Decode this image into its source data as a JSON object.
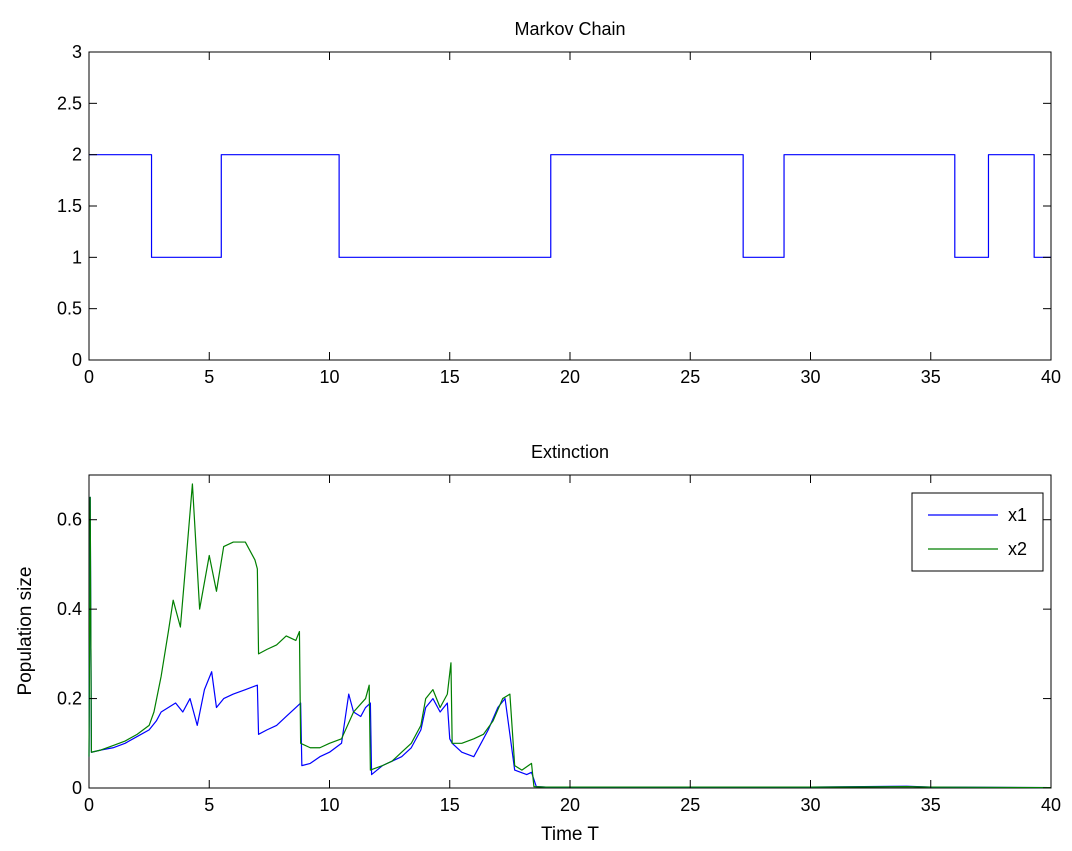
{
  "chart_data": [
    {
      "type": "line",
      "title": "Markov Chain",
      "xlabel": "",
      "ylabel": "",
      "xlim": [
        0,
        40
      ],
      "ylim": [
        0,
        3
      ],
      "xticks": [
        0,
        5,
        10,
        15,
        20,
        25,
        30,
        35,
        40
      ],
      "yticks": [
        0,
        0.5,
        1,
        1.5,
        2,
        2.5,
        3
      ],
      "grid": false,
      "colors": {
        "chain": "#0000ff"
      },
      "series": [
        {
          "step": true,
          "color": "#0000ff",
          "x": [
            0,
            2.6,
            5.5,
            10.4,
            19.2,
            27.2,
            28.9,
            36,
            37.4,
            39.3,
            40
          ],
          "y": [
            2,
            1,
            2,
            1,
            2,
            1,
            2,
            1,
            2,
            1,
            1
          ]
        }
      ]
    },
    {
      "type": "line",
      "title": "Extinction",
      "xlabel": "Time T",
      "ylabel": "Population size",
      "xlim": [
        0,
        40
      ],
      "ylim": [
        0,
        0.7
      ],
      "xticks": [
        0,
        5,
        10,
        15,
        20,
        25,
        30,
        35,
        40
      ],
      "yticks": [
        0,
        0.2,
        0.4,
        0.6
      ],
      "grid": false,
      "legend": "top-right",
      "series": [
        {
          "name": "x1",
          "color": "#0000ff",
          "x": [
            0,
            0.05,
            0.1,
            0.5,
            1,
            1.5,
            2,
            2.5,
            2.8,
            3,
            3.3,
            3.6,
            3.9,
            4.2,
            4.5,
            4.8,
            5.1,
            5.3,
            5.6,
            6,
            6.5,
            7,
            7.05,
            7.4,
            7.8,
            8.2,
            8.6,
            8.8,
            8.85,
            9.2,
            9.6,
            10,
            10.5,
            10.8,
            11,
            11.3,
            11.5,
            11.7,
            11.75,
            12.2,
            12.6,
            13,
            13.4,
            13.8,
            14,
            14.3,
            14.6,
            14.9,
            15,
            15.1,
            15.5,
            16,
            16.3,
            16.6,
            17,
            17.3,
            17.5,
            17.6,
            17.7,
            18.2,
            18.4,
            18.6,
            19,
            20,
            25,
            30,
            34,
            35,
            40
          ],
          "y": [
            0.07,
            0.65,
            0.08,
            0.085,
            0.09,
            0.1,
            0.115,
            0.13,
            0.15,
            0.17,
            0.18,
            0.19,
            0.17,
            0.2,
            0.14,
            0.22,
            0.26,
            0.18,
            0.2,
            0.21,
            0.22,
            0.23,
            0.12,
            0.13,
            0.14,
            0.16,
            0.18,
            0.19,
            0.05,
            0.055,
            0.07,
            0.08,
            0.1,
            0.21,
            0.17,
            0.16,
            0.18,
            0.19,
            0.03,
            0.05,
            0.06,
            0.07,
            0.09,
            0.13,
            0.18,
            0.2,
            0.17,
            0.19,
            0.11,
            0.1,
            0.08,
            0.07,
            0.1,
            0.13,
            0.18,
            0.2,
            0.12,
            0.08,
            0.04,
            0.03,
            0.035,
            0.003,
            0.002,
            0.002,
            0.002,
            0.002,
            0.004,
            0.002,
            0.001
          ]
        },
        {
          "name": "x2",
          "color": "#007f00",
          "x": [
            0,
            0.05,
            0.1,
            0.5,
            1,
            1.5,
            2,
            2.5,
            2.7,
            3,
            3.3,
            3.5,
            3.8,
            4.1,
            4.3,
            4.6,
            5,
            5.3,
            5.6,
            6,
            6.5,
            6.9,
            7,
            7.05,
            7.4,
            7.8,
            8.2,
            8.6,
            8.75,
            8.8,
            9.2,
            9.6,
            10,
            10.5,
            11,
            11.5,
            11.65,
            11.7,
            12.2,
            12.6,
            13,
            13.4,
            13.8,
            14,
            14.3,
            14.6,
            14.9,
            15.05,
            15.1,
            15.5,
            16,
            16.4,
            16.8,
            17.2,
            17.5,
            17.7,
            18,
            18.4,
            18.5,
            19,
            20,
            25,
            30,
            34,
            35,
            40
          ],
          "y": [
            0.07,
            0.65,
            0.08,
            0.085,
            0.095,
            0.105,
            0.12,
            0.14,
            0.17,
            0.25,
            0.35,
            0.42,
            0.36,
            0.55,
            0.68,
            0.4,
            0.52,
            0.44,
            0.54,
            0.55,
            0.55,
            0.51,
            0.49,
            0.3,
            0.31,
            0.32,
            0.34,
            0.33,
            0.35,
            0.1,
            0.09,
            0.09,
            0.1,
            0.11,
            0.17,
            0.2,
            0.23,
            0.04,
            0.05,
            0.06,
            0.08,
            0.1,
            0.14,
            0.2,
            0.22,
            0.18,
            0.21,
            0.28,
            0.1,
            0.1,
            0.11,
            0.12,
            0.15,
            0.2,
            0.21,
            0.05,
            0.04,
            0.055,
            0.003,
            0.002,
            0.002,
            0.002,
            0.002,
            0.003,
            0.002,
            0.001
          ]
        }
      ]
    }
  ]
}
